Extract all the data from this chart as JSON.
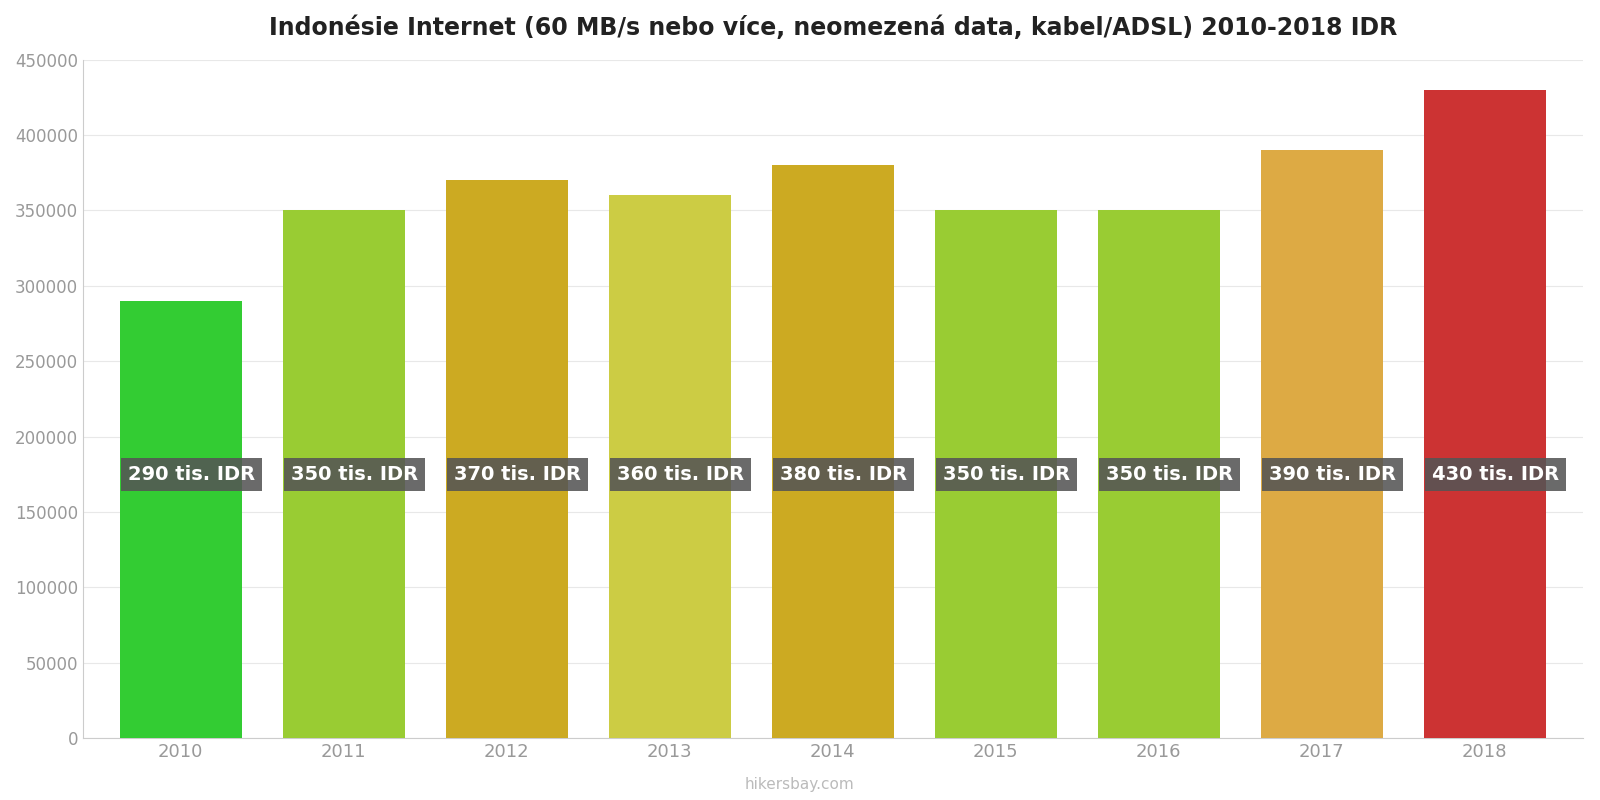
{
  "title": "Indonésie Internet (60 MB/s nebo více, neomezená data, kabel/ADSL) 2010-2018 IDR",
  "years": [
    2010,
    2011,
    2012,
    2013,
    2014,
    2015,
    2016,
    2017,
    2018
  ],
  "values": [
    290000,
    350000,
    370000,
    360000,
    380000,
    350000,
    350000,
    390000,
    430000
  ],
  "labels": [
    "290 tis. IDR",
    "350 tis. IDR",
    "370 tis. IDR",
    "360 tis. IDR",
    "380 tis. IDR",
    "350 tis. IDR",
    "350 tis. IDR",
    "390 tis. IDR",
    "430 tis. IDR"
  ],
  "bar_colors": [
    "#33cc33",
    "#99cc33",
    "#ccaa22",
    "#cccc44",
    "#ccaa22",
    "#99cc33",
    "#99cc33",
    "#ddaa44",
    "#cc3333"
  ],
  "ylim": [
    0,
    450000
  ],
  "yticks": [
    0,
    50000,
    100000,
    150000,
    200000,
    250000,
    300000,
    350000,
    400000,
    450000
  ],
  "label_bg_color": "#555555",
  "label_text_color": "#ffffff",
  "watermark": "hikersbay.com",
  "background_color": "#ffffff",
  "title_fontsize": 17,
  "label_fontsize": 14,
  "tick_color": "#999999"
}
